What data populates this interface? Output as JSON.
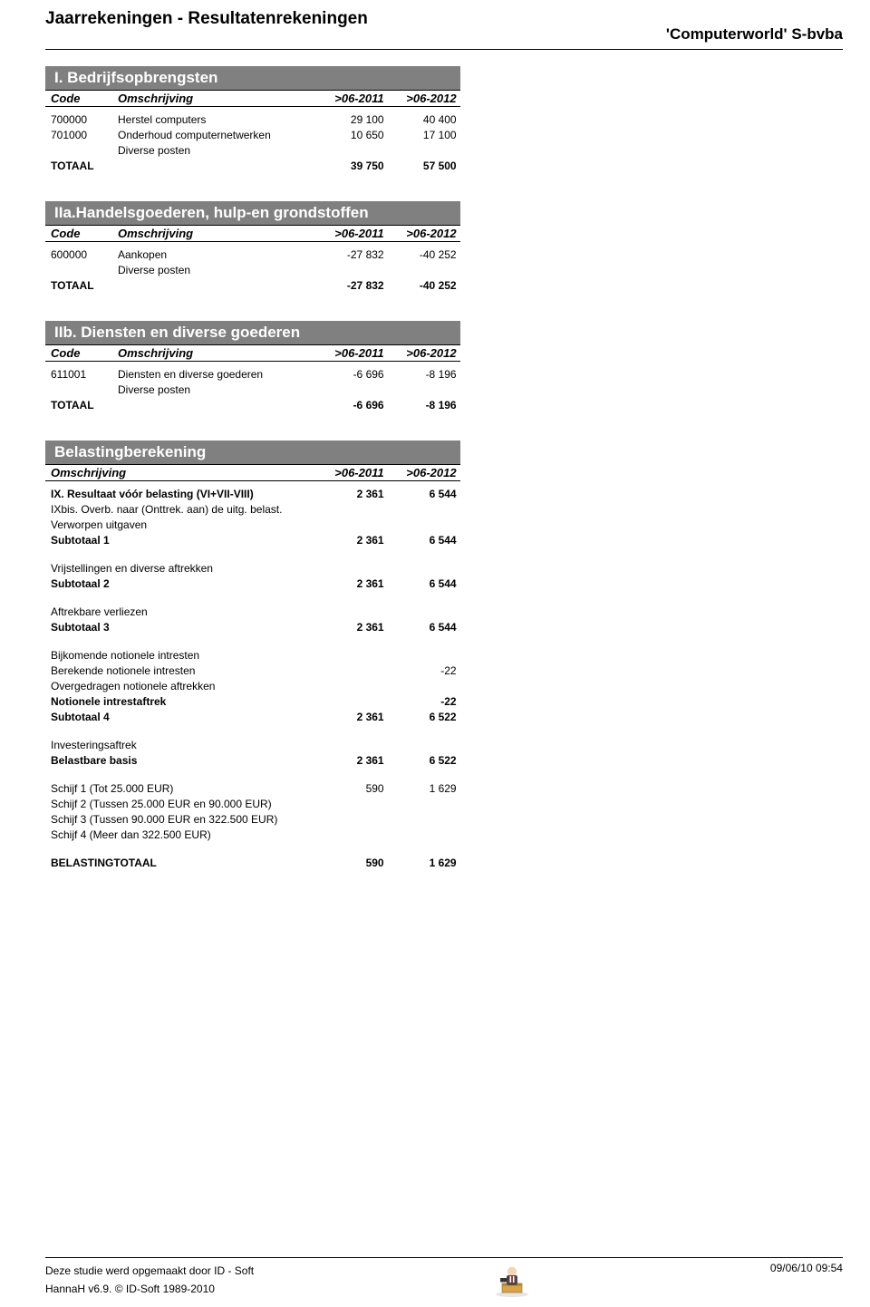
{
  "page_title": "Jaarrekeningen - Resultatenrekeningen",
  "company": "'Computerworld' S-bvba",
  "columns": {
    "code": "Code",
    "desc": "Omschrijving",
    "y1": ">06-2011",
    "y2": ">06-2012"
  },
  "sections": {
    "s1": {
      "title": "I. Bedrijfsopbrengsten",
      "rows": [
        {
          "code": "700000",
          "desc": "Herstel computers",
          "y1": "29 100",
          "y2": "40 400"
        },
        {
          "code": "701000",
          "desc": "Onderhoud computernetwerken",
          "y1": "10 650",
          "y2": "17 100"
        },
        {
          "code": "",
          "desc": "Diverse posten",
          "y1": "",
          "y2": ""
        },
        {
          "code": "TOTAAL",
          "desc": "",
          "y1": "39 750",
          "y2": "57 500",
          "bold": true
        }
      ]
    },
    "s2": {
      "title": "IIa.Handelsgoederen, hulp-en grondstoffen",
      "rows": [
        {
          "code": "600000",
          "desc": "Aankopen",
          "y1": "-27 832",
          "y2": "-40 252"
        },
        {
          "code": "",
          "desc": "Diverse posten",
          "y1": "",
          "y2": ""
        },
        {
          "code": "TOTAAL",
          "desc": "",
          "y1": "-27 832",
          "y2": "-40 252",
          "bold": true
        }
      ]
    },
    "s3": {
      "title": "IIb. Diensten en diverse goederen",
      "rows": [
        {
          "code": "611001",
          "desc": "Diensten en diverse goederen",
          "y1": "-6 696",
          "y2": "-8 196"
        },
        {
          "code": "",
          "desc": "Diverse posten",
          "y1": "",
          "y2": ""
        },
        {
          "code": "TOTAAL",
          "desc": "",
          "y1": "-6 696",
          "y2": "-8 196",
          "bold": true
        }
      ]
    },
    "s4": {
      "title": "Belastingberekening",
      "rows": [
        {
          "desc": "IX. Resultaat vóór belasting (VI+VII-VIII)",
          "y1": "2 361",
          "y2": "6 544",
          "bold": true,
          "indent": 1
        },
        {
          "desc": "IXbis. Overb. naar (Onttrek. aan) de uitg. belast.",
          "y1": "",
          "y2": ""
        },
        {
          "desc": "Verworpen uitgaven",
          "y1": "",
          "y2": ""
        },
        {
          "desc": "Subtotaal 1",
          "y1": "2 361",
          "y2": "6 544",
          "bold": true
        },
        {
          "gap": true
        },
        {
          "desc": "Vrijstellingen en diverse aftrekken",
          "y1": "",
          "y2": ""
        },
        {
          "desc": "Subtotaal 2",
          "y1": "2 361",
          "y2": "6 544",
          "bold": true
        },
        {
          "gap": true
        },
        {
          "desc": "Aftrekbare verliezen",
          "y1": "",
          "y2": ""
        },
        {
          "desc": "Subtotaal 3",
          "y1": "2 361",
          "y2": "6 544",
          "bold": true
        },
        {
          "gap": true
        },
        {
          "desc": "Bijkomende notionele intresten",
          "y1": "",
          "y2": "",
          "indent": 2
        },
        {
          "desc": "Berekende notionele intresten",
          "y1": "",
          "y2": "-22",
          "indent": 2
        },
        {
          "desc": "Overgedragen notionele aftrekken",
          "y1": "",
          "y2": "",
          "indent": 2
        },
        {
          "desc": "Notionele intrestaftrek",
          "y1": "",
          "y2": "-22",
          "bold": true
        },
        {
          "desc": "Subtotaal 4",
          "y1": "2 361",
          "y2": "6 522",
          "bold": true
        },
        {
          "gap": true
        },
        {
          "desc": "Investeringsaftrek",
          "y1": "",
          "y2": ""
        },
        {
          "desc": "Belastbare basis",
          "y1": "2 361",
          "y2": "6 522",
          "bold": true
        },
        {
          "gap": true
        },
        {
          "desc": "Schijf 1 (Tot 25.000 EUR)",
          "y1": "590",
          "y2": "1 629",
          "indent": 2
        },
        {
          "desc": "Schijf 2 (Tussen 25.000 EUR en 90.000 EUR)",
          "y1": "",
          "y2": "",
          "indent": 2
        },
        {
          "desc": "Schijf 3 (Tussen 90.000 EUR en 322.500 EUR)",
          "y1": "",
          "y2": "",
          "indent": 2
        },
        {
          "desc": "Schijf 4 (Meer dan 322.500 EUR)",
          "y1": "",
          "y2": "",
          "indent": 2
        },
        {
          "gap": true
        },
        {
          "desc": "BELASTINGTOTAAL",
          "y1": "590",
          "y2": "1 629",
          "bold": true,
          "indent": 1
        }
      ]
    }
  },
  "footer": {
    "line1": "Deze studie werd opgemaakt door  ID - Soft",
    "line2": "HannaH v6.9. © ID-Soft 1989-2010",
    "timestamp": "09/06/10 09:54"
  },
  "style": {
    "section_bg": "#808080",
    "section_fg": "#ffffff",
    "text_color": "#000000",
    "bg_color": "#ffffff"
  }
}
